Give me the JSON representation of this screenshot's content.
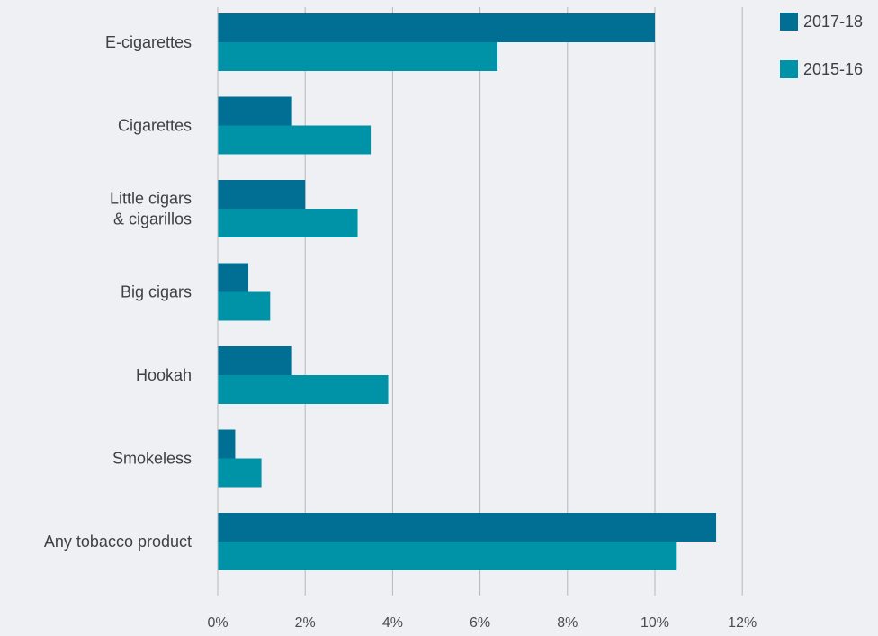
{
  "chart_data": {
    "type": "bar",
    "orientation": "horizontal",
    "categories": [
      [
        "E-cigarettes"
      ],
      [
        "Cigarettes"
      ],
      [
        "Little cigars",
        "& cigarillos"
      ],
      [
        "Big cigars"
      ],
      [
        "Hookah"
      ],
      [
        "Smokeless"
      ],
      [
        "Any tobacco product"
      ]
    ],
    "series": [
      {
        "name": "2017-18",
        "color": "#006f93",
        "values": [
          10.0,
          1.7,
          2.0,
          0.7,
          1.7,
          0.4,
          11.4
        ]
      },
      {
        "name": "2015-16",
        "color": "#0093a8",
        "values": [
          6.4,
          3.5,
          3.2,
          1.2,
          3.9,
          1.0,
          10.5
        ]
      }
    ],
    "xlim": [
      0,
      12
    ],
    "xticks": [
      "0%",
      "2%",
      "4%",
      "6%",
      "8%",
      "10%",
      "12%"
    ],
    "xtick_values": [
      0,
      2,
      4,
      6,
      8,
      10,
      12
    ],
    "grid": true,
    "legend_position": "top-right",
    "title": "",
    "xlabel": "",
    "ylabel": ""
  }
}
